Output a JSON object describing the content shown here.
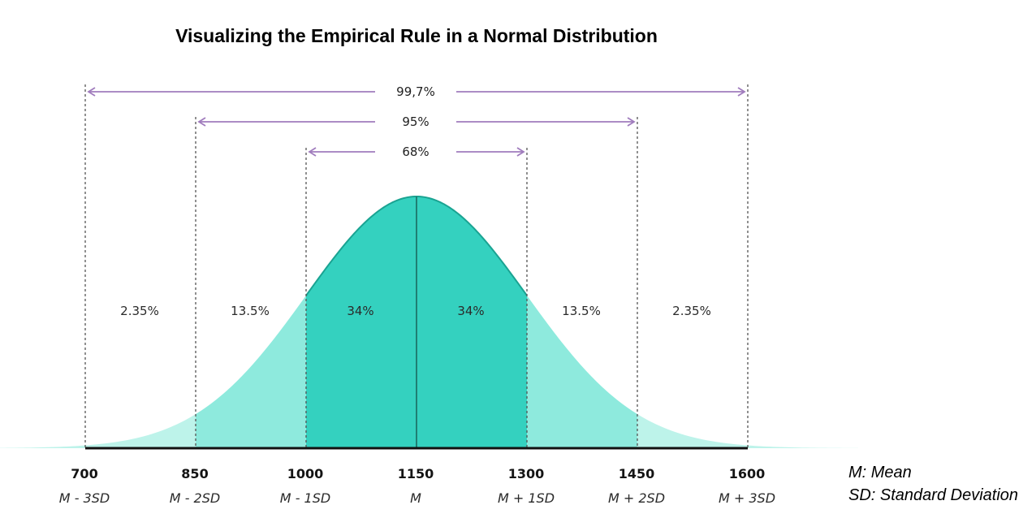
{
  "title": "Visualizing the Empirical Rule in a Normal Distribution",
  "chart_data": {
    "type": "area",
    "distribution": "normal",
    "mean": 1150,
    "sd": 150,
    "x_ticks": [
      {
        "value": 700,
        "label": "700",
        "sublabel": "M - 3SD"
      },
      {
        "value": 850,
        "label": "850",
        "sublabel": "M - 2SD"
      },
      {
        "value": 1000,
        "label": "1000",
        "sublabel": "M - 1SD"
      },
      {
        "value": 1150,
        "label": "1150",
        "sublabel": "M"
      },
      {
        "value": 1300,
        "label": "1300",
        "sublabel": "M + 1SD"
      },
      {
        "value": 1450,
        "label": "1450",
        "sublabel": "M + 2SD"
      },
      {
        "value": 1600,
        "label": "1600",
        "sublabel": "M + 3SD"
      }
    ],
    "bands": [
      {
        "from": 700,
        "to": 850,
        "label": "2.35%"
      },
      {
        "from": 850,
        "to": 1000,
        "label": "13.5%"
      },
      {
        "from": 1000,
        "to": 1150,
        "label": "34%"
      },
      {
        "from": 1150,
        "to": 1300,
        "label": "34%"
      },
      {
        "from": 1300,
        "to": 1450,
        "label": "13.5%"
      },
      {
        "from": 1450,
        "to": 1600,
        "label": "2.35%"
      }
    ],
    "ranges": [
      {
        "from": 700,
        "to": 1600,
        "label": "99,7%"
      },
      {
        "from": 850,
        "to": 1450,
        "label": "95%"
      },
      {
        "from": 1000,
        "to": 1300,
        "label": "68%"
      }
    ]
  },
  "legend": [
    "M: Mean",
    "SD: Standard Deviation"
  ],
  "colors": {
    "inner": "#34d1bf",
    "middle": "#8eeadd",
    "outer": "#bdf3ea",
    "curve": "#1aa392",
    "arrow": "#a07cbd",
    "baseline": "#111111",
    "dashed": "#555555"
  }
}
